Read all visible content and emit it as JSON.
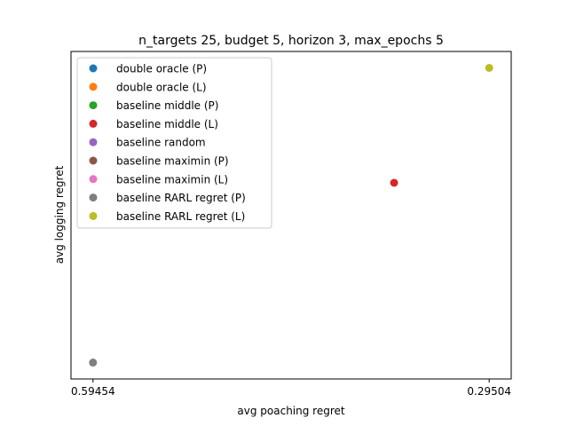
{
  "chart_data": {
    "type": "scatter",
    "title": "n_targets 25, budget 5, horizon 3, max_epochs 5",
    "xlabel": "avg poaching regret",
    "ylabel": "avg logging regret",
    "x_axis": {
      "type": "category",
      "categories": [
        "0.59454",
        "0.29504"
      ]
    },
    "y_axis": {
      "ylim": [
        0.0,
        1.0
      ],
      "tick_labels": []
    },
    "grid": false,
    "legend": {
      "placement": "upper-left"
    },
    "series": [
      {
        "name": "double oracle (P)",
        "color": "#1f77b4",
        "points": []
      },
      {
        "name": "double oracle (L)",
        "color": "#ff7f0e",
        "points": []
      },
      {
        "name": "baseline middle (P)",
        "color": "#2ca02c",
        "points": []
      },
      {
        "name": "baseline middle (L)",
        "color": "#d62728",
        "points": [
          {
            "x": 0.76,
            "y": 0.61
          }
        ]
      },
      {
        "name": "baseline random",
        "color": "#9467bd",
        "points": []
      },
      {
        "name": "baseline maximin (P)",
        "color": "#8c564b",
        "points": []
      },
      {
        "name": "baseline maximin (L)",
        "color": "#e377c2",
        "points": []
      },
      {
        "name": "baseline RARL regret (P)",
        "color": "#7f7f7f",
        "points": [
          {
            "x": 0.0,
            "y": 0.0
          }
        ]
      },
      {
        "name": "baseline RARL regret (L)",
        "color": "#bcbd22",
        "points": [
          {
            "x": 1.0,
            "y": 1.0
          }
        ]
      }
    ]
  }
}
